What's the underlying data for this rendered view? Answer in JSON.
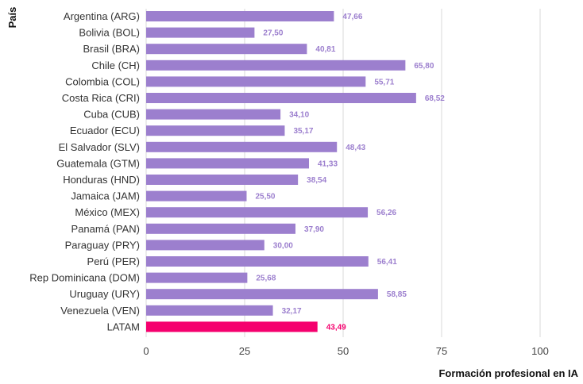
{
  "chart_data": {
    "type": "bar",
    "orientation": "horizontal",
    "ylabel": "País",
    "xlabel": "Formación profesional en IA",
    "xlim": [
      0,
      100
    ],
    "xticks": [
      0,
      25,
      50,
      75,
      100
    ],
    "grid": true,
    "categories": [
      "Argentina (ARG)",
      "Bolivia (BOL)",
      "Brasil (BRA)",
      "Chile (CH)",
      "Colombia (COL)",
      "Costa Rica (CRI)",
      "Cuba (CUB)",
      "Ecuador (ECU)",
      "El Salvador (SLV)",
      "Guatemala (GTM)",
      "Honduras (HND)",
      "Jamaica (JAM)",
      "México (MEX)",
      "Panamá (PAN)",
      "Paraguay (PRY)",
      "Perú (PER)",
      "Rep Dominicana (DOM)",
      "Uruguay (URY)",
      "Venezuela (VEN)",
      "LATAM"
    ],
    "values": [
      47.66,
      27.5,
      40.81,
      65.8,
      55.71,
      68.52,
      34.1,
      35.17,
      48.43,
      41.33,
      38.54,
      25.5,
      56.26,
      37.9,
      30.0,
      56.41,
      25.68,
      58.85,
      32.17,
      43.49
    ],
    "value_labels": [
      "47,66",
      "27,50",
      "40,81",
      "65,80",
      "55,71",
      "68,52",
      "34,10",
      "35,17",
      "48,43",
      "41,33",
      "38,54",
      "25,50",
      "56,26",
      "37,90",
      "30,00",
      "56,41",
      "25,68",
      "58,85",
      "32,17",
      "43,49"
    ],
    "highlight_index": 19,
    "colors": {
      "bar": "#9c7fce",
      "highlight": "#f5006e",
      "label": "#9c7fce",
      "highlight_label": "#f5006e",
      "grid": "#d8d8d8"
    }
  }
}
